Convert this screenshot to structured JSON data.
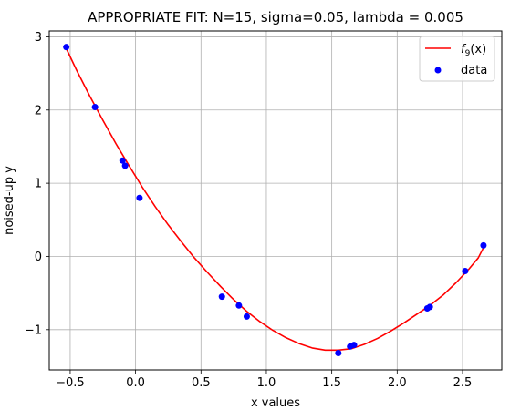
{
  "chart_data": {
    "type": "scatter",
    "title": "APPROPRIATE FIT: N=15, sigma=0.05, lambda = 0.005",
    "xlabel": "x values",
    "ylabel": "noised-up y",
    "xlim": [
      -0.66,
      2.8
    ],
    "ylim": [
      -1.55,
      3.08
    ],
    "xticks": [
      -0.5,
      0.0,
      0.5,
      1.0,
      1.5,
      2.0,
      2.5
    ],
    "xtick_labels": [
      "−0.5",
      "0.0",
      "0.5",
      "1.0",
      "1.5",
      "2.0",
      "2.5"
    ],
    "yticks": [
      -1,
      0,
      1,
      2,
      3
    ],
    "ytick_labels": [
      "−1",
      "0",
      "1",
      "2",
      "3"
    ],
    "grid": true,
    "legend_position": "top-right",
    "series": [
      {
        "name": "data",
        "kind": "scatter",
        "color": "#0000ff",
        "points": [
          [
            -0.53,
            2.86
          ],
          [
            -0.31,
            2.04
          ],
          [
            -0.1,
            1.31
          ],
          [
            -0.08,
            1.24
          ],
          [
            0.03,
            0.8
          ],
          [
            0.66,
            -0.55
          ],
          [
            0.79,
            -0.67
          ],
          [
            0.85,
            -0.82
          ],
          [
            1.55,
            -1.32
          ],
          [
            1.64,
            -1.23
          ],
          [
            1.67,
            -1.21
          ],
          [
            2.23,
            -0.71
          ],
          [
            2.25,
            -0.69
          ],
          [
            2.52,
            -0.2
          ],
          [
            2.66,
            0.15
          ]
        ]
      },
      {
        "name": "f_9(x)",
        "legend_main": "f",
        "legend_sub": "9",
        "legend_tail": "(x)",
        "kind": "line",
        "color": "#ff0000",
        "points": [
          [
            -0.53,
            2.84
          ],
          [
            -0.45,
            2.54
          ],
          [
            -0.35,
            2.19
          ],
          [
            -0.25,
            1.86
          ],
          [
            -0.15,
            1.54
          ],
          [
            -0.05,
            1.24
          ],
          [
            0.05,
            0.95
          ],
          [
            0.15,
            0.68
          ],
          [
            0.25,
            0.43
          ],
          [
            0.35,
            0.2
          ],
          [
            0.45,
            -0.02
          ],
          [
            0.55,
            -0.22
          ],
          [
            0.65,
            -0.41
          ],
          [
            0.75,
            -0.59
          ],
          [
            0.85,
            -0.75
          ],
          [
            0.95,
            -0.89
          ],
          [
            1.05,
            -1.01
          ],
          [
            1.15,
            -1.11
          ],
          [
            1.25,
            -1.19
          ],
          [
            1.35,
            -1.25
          ],
          [
            1.45,
            -1.28
          ],
          [
            1.55,
            -1.28
          ],
          [
            1.65,
            -1.26
          ],
          [
            1.75,
            -1.2
          ],
          [
            1.85,
            -1.12
          ],
          [
            1.95,
            -1.02
          ],
          [
            2.05,
            -0.91
          ],
          [
            2.15,
            -0.79
          ],
          [
            2.25,
            -0.67
          ],
          [
            2.35,
            -0.53
          ],
          [
            2.45,
            -0.36
          ],
          [
            2.55,
            -0.17
          ],
          [
            2.62,
            -0.02
          ],
          [
            2.66,
            0.12
          ]
        ]
      }
    ]
  }
}
